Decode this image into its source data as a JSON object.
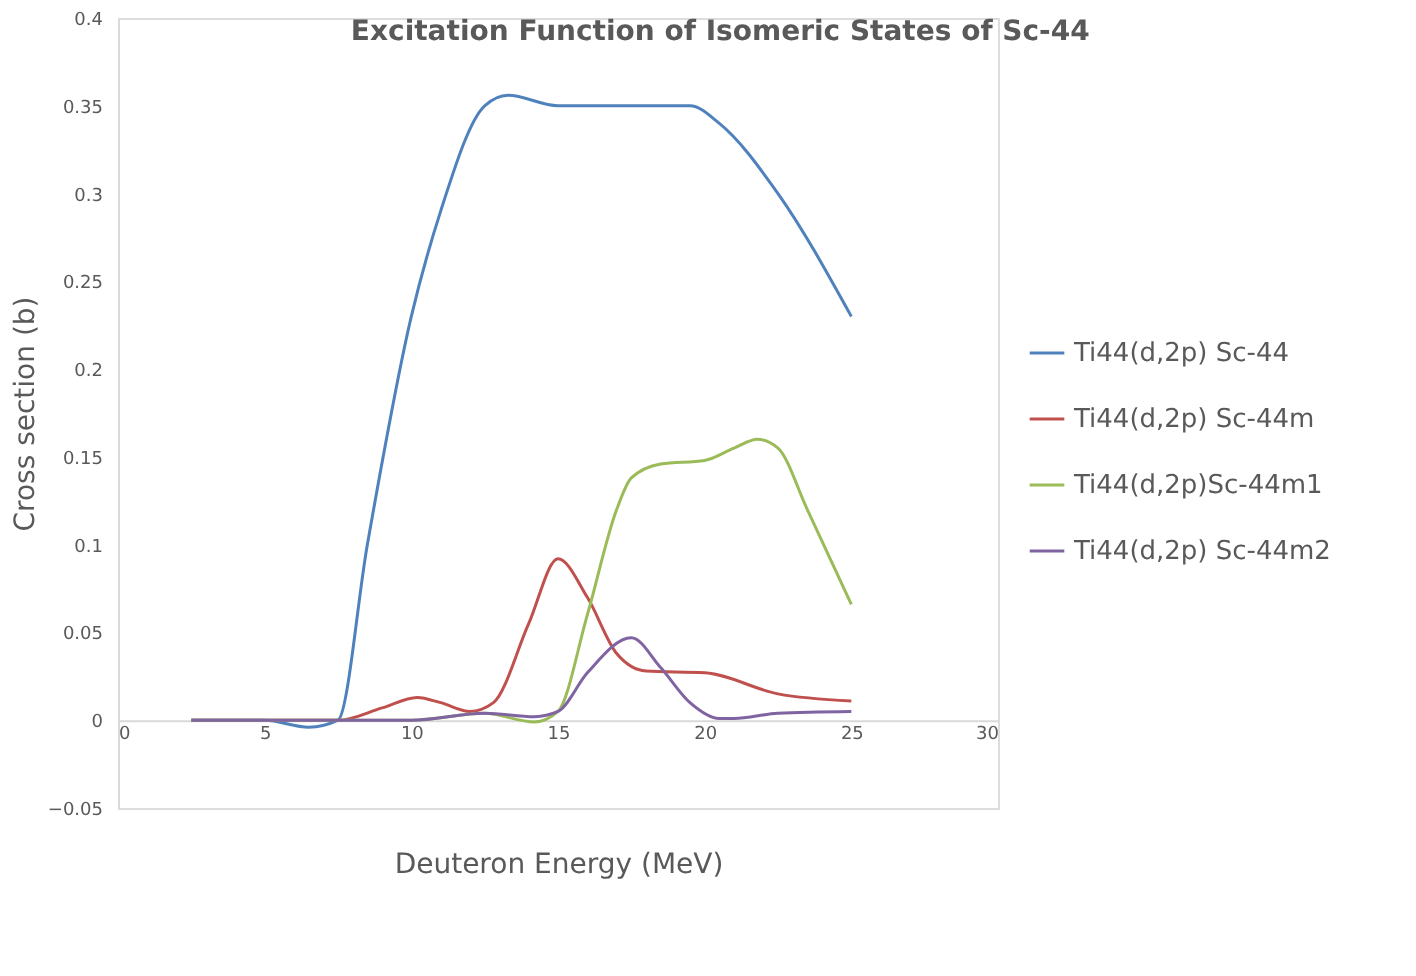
{
  "chart_data": {
    "type": "line",
    "title": "Excitation Function of Isomeric States of Sc-44",
    "xlabel": "Deuteron Energy (MeV)",
    "ylabel": "Cross section (b)",
    "xlim": [
      0,
      30
    ],
    "xticks": [
      0,
      5,
      10,
      15,
      20,
      25,
      30
    ],
    "ylim": [
      -0.05,
      0.4
    ],
    "yticks": [
      -0.05,
      0,
      0.05,
      0.1,
      0.15,
      0.2,
      0.25,
      0.3,
      0.35,
      0.4
    ],
    "grid": false,
    "legend": "right",
    "marker": "none",
    "line_style": "solid",
    "series": [
      {
        "name": "Ti44(d,2p) Sc-44",
        "color": "#4f81bd",
        "x": [
          2.5,
          5,
          6.5,
          7.5,
          8.5,
          10,
          11,
          12.5,
          13.3,
          15,
          17.5,
          19.5,
          20.5,
          22.5,
          25
        ],
        "values": [
          0,
          0,
          -0.004,
          0,
          0.1,
          0.23,
          0.29,
          0.35,
          0.356,
          0.35,
          0.35,
          0.35,
          0.34,
          0.3,
          0.23
        ]
      },
      {
        "name": "Ti44(d,2p) Sc-44m",
        "color": "#c0504d",
        "x": [
          2.5,
          7.5,
          9,
          10.2,
          11,
          12,
          12.8,
          14,
          15,
          16,
          17,
          18,
          20,
          22.5,
          25
        ],
        "values": [
          0,
          0,
          0.007,
          0.013,
          0.01,
          0.005,
          0.01,
          0.055,
          0.092,
          0.07,
          0.038,
          0.028,
          0.027,
          0.015,
          0.011
        ]
      },
      {
        "name": "Ti44(d,2p)Sc-44m1",
        "color": "#9bbb59",
        "x": [
          2.5,
          10,
          12.5,
          14.2,
          15,
          16,
          17,
          17.5,
          18.5,
          20,
          21,
          21.8,
          22.5,
          23.5,
          25
        ],
        "values": [
          0,
          0,
          0.004,
          -0.001,
          0.005,
          0.06,
          0.12,
          0.138,
          0.146,
          0.148,
          0.155,
          0.16,
          0.155,
          0.12,
          0.066
        ]
      },
      {
        "name": "Ti44(d,2p) Sc-44m2",
        "color": "#8064a2",
        "x": [
          2.5,
          10,
          12.5,
          14.2,
          15,
          16,
          17.5,
          18.5,
          19.5,
          20.5,
          21,
          22.5,
          25
        ],
        "values": [
          0,
          0,
          0.004,
          0.002,
          0.005,
          0.027,
          0.047,
          0.03,
          0.01,
          0.001,
          0.001,
          0.004,
          0.005
        ]
      }
    ]
  }
}
